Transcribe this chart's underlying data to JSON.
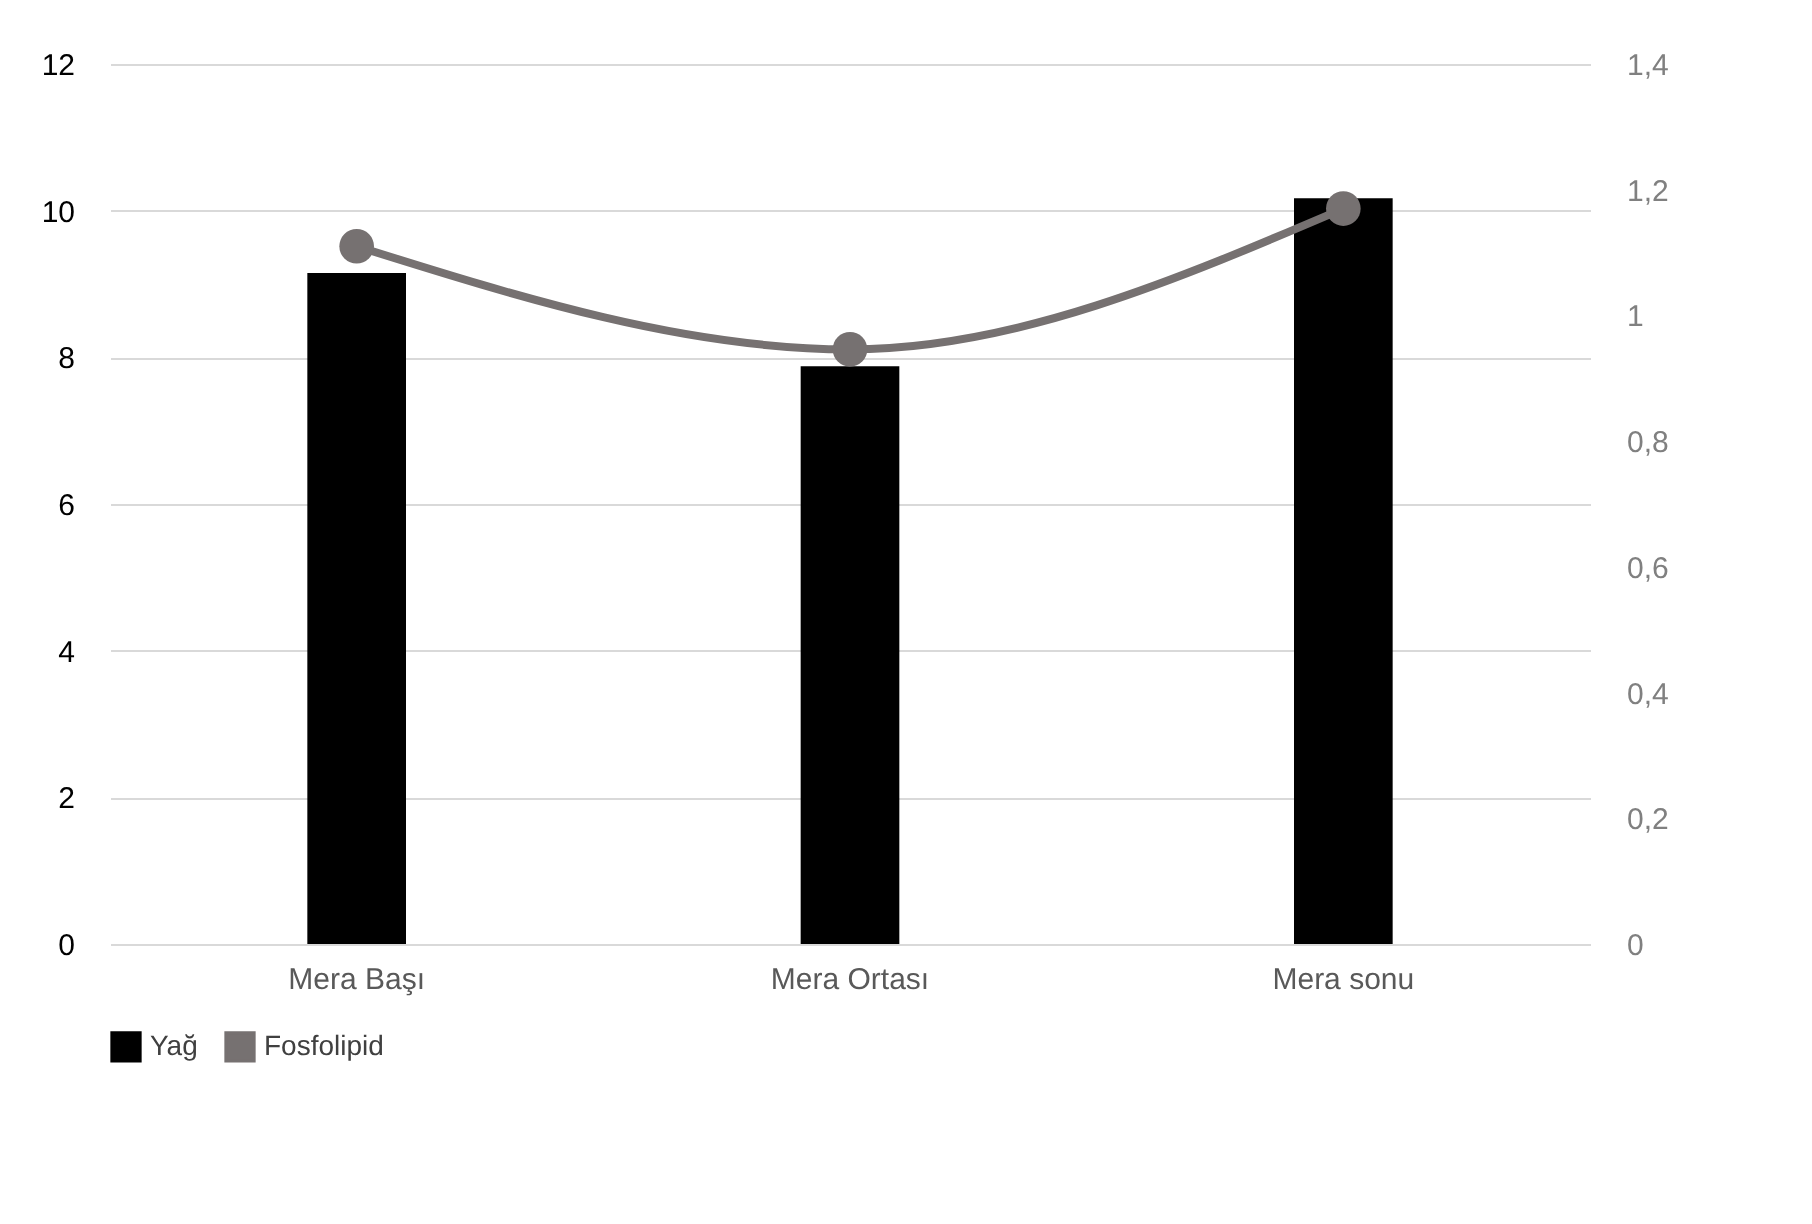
{
  "chart_data": {
    "type": "bar",
    "categories": [
      "Mera Başı",
      "Mera Ortası",
      "Mera sonu"
    ],
    "series": [
      {
        "name": "Yağ",
        "color": "#000000",
        "values": [
          9.15,
          7.88,
          10.17
        ]
      },
      {
        "name": "Fosfolipid",
        "color": "#767171",
        "type": "line",
        "axis": "y2",
        "marker": "circle",
        "values": [
          1.11,
          0.946,
          1.17
        ]
      }
    ],
    "ylim": [
      0,
      12
    ],
    "yticks": [
      0,
      2,
      4,
      6,
      8,
      10,
      12
    ],
    "y2lim": [
      0,
      1.4
    ],
    "y2ticks": [
      {
        "value": 0,
        "label": "0"
      },
      {
        "value": 0.2,
        "label": "0,2"
      },
      {
        "value": 0.4,
        "label": "0,4"
      },
      {
        "value": 0.6,
        "label": "0,6"
      },
      {
        "value": 0.8,
        "label": "0,8"
      },
      {
        "value": 1,
        "label": "1"
      },
      {
        "value": 1.2,
        "label": "1,2"
      },
      {
        "value": 1.4,
        "label": "1,4"
      }
    ],
    "grid": "y",
    "legend": "bottom"
  }
}
